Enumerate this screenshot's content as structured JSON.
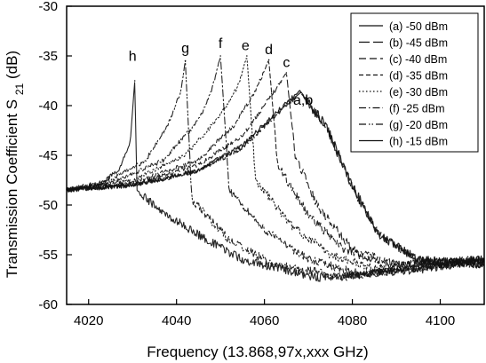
{
  "chart_data": {
    "type": "line",
    "xlabel": "Frequency (13.868,97x,xxx GHz)",
    "ylabel": "Transmission Coefficient S21 (dB)",
    "ylabel_main": "Transmission Coefficient S",
    "ylabel_sub": "21",
    "ylabel_tail": " (dB)",
    "xlim": [
      4015,
      4110
    ],
    "ylim": [
      -60,
      -30
    ],
    "xticks": [
      4020,
      4040,
      4060,
      4080,
      4100
    ],
    "yticks": [
      -30,
      -35,
      -40,
      -45,
      -50,
      -55,
      -60
    ],
    "xtick_labels": [
      "4020",
      "4040",
      "4060",
      "4080",
      "4100"
    ],
    "ytick_labels": [
      "-30",
      "-35",
      "-40",
      "-45",
      "-50",
      "-55",
      "-60"
    ],
    "grid": false,
    "legend_position": "top-right",
    "series": [
      {
        "name": "(a) -50 dBm",
        "dash": "solid",
        "peak_x": 4068.0,
        "peak_y": -38.5,
        "points": [
          [
            4015,
            -48.5
          ],
          [
            4030,
            -48.0
          ],
          [
            4045,
            -46.5
          ],
          [
            4055,
            -44.0
          ],
          [
            4062,
            -41.0
          ],
          [
            4068,
            -38.5
          ],
          [
            4074,
            -42.0
          ],
          [
            4080,
            -48.0
          ],
          [
            4086,
            -53.0
          ],
          [
            4095,
            -55.5
          ],
          [
            4110,
            -56.0
          ]
        ]
      },
      {
        "name": "(b) -45 dBm",
        "dash": "long-dash",
        "peak_x": 4068.2,
        "peak_y": -38.7,
        "points": [
          [
            4015,
            -48.5
          ],
          [
            4030,
            -48.0
          ],
          [
            4045,
            -46.6
          ],
          [
            4055,
            -44.2
          ],
          [
            4062,
            -41.2
          ],
          [
            4068.2,
            -38.7
          ],
          [
            4074,
            -42.2
          ],
          [
            4080,
            -48.2
          ],
          [
            4086,
            -53.0
          ],
          [
            4095,
            -55.5
          ],
          [
            4110,
            -56.0
          ]
        ]
      },
      {
        "name": "(c) -40 dBm",
        "dash": "dash",
        "peak_x": 4065.0,
        "peak_y": -36.7,
        "points": [
          [
            4015,
            -48.5
          ],
          [
            4030,
            -48.0
          ],
          [
            4045,
            -46.0
          ],
          [
            4055,
            -43.0
          ],
          [
            4060,
            -40.0
          ],
          [
            4065,
            -36.7
          ],
          [
            4067,
            -45.0
          ],
          [
            4072,
            -50.0
          ],
          [
            4080,
            -54.5
          ],
          [
            4090,
            -56.0
          ],
          [
            4110,
            -55.5
          ]
        ]
      },
      {
        "name": "(d) -35 dBm",
        "dash": "short-dash",
        "peak_x": 4061.0,
        "peak_y": -35.4,
        "points": [
          [
            4015,
            -48.5
          ],
          [
            4030,
            -47.8
          ],
          [
            4045,
            -45.5
          ],
          [
            4053,
            -42.0
          ],
          [
            4058,
            -38.5
          ],
          [
            4061,
            -35.4
          ],
          [
            4063,
            -46.0
          ],
          [
            4070,
            -51.0
          ],
          [
            4078,
            -54.5
          ],
          [
            4088,
            -56.0
          ],
          [
            4110,
            -55.5
          ]
        ]
      },
      {
        "name": "(e) -30 dBm",
        "dash": "dot",
        "peak_x": 4056.0,
        "peak_y": -35.0,
        "points": [
          [
            4015,
            -48.5
          ],
          [
            4030,
            -47.5
          ],
          [
            4042,
            -45.0
          ],
          [
            4050,
            -41.0
          ],
          [
            4054,
            -38.0
          ],
          [
            4056,
            -35.0
          ],
          [
            4058,
            -47.5
          ],
          [
            4066,
            -52.0
          ],
          [
            4075,
            -55.0
          ],
          [
            4086,
            -56.5
          ],
          [
            4110,
            -55.5
          ]
        ]
      },
      {
        "name": "(f) -25 dBm",
        "dash": "dash-dot",
        "peak_x": 4050.0,
        "peak_y": -35.0,
        "points": [
          [
            4015,
            -48.5
          ],
          [
            4025,
            -47.8
          ],
          [
            4037,
            -45.5
          ],
          [
            4045,
            -41.5
          ],
          [
            4048,
            -38.5
          ],
          [
            4050,
            -35.0
          ],
          [
            4052,
            -48.5
          ],
          [
            4060,
            -52.5
          ],
          [
            4070,
            -55.5
          ],
          [
            4082,
            -57.0
          ],
          [
            4110,
            -55.5
          ]
        ]
      },
      {
        "name": "(g) -20 dBm",
        "dash": "dash-dot-dot",
        "peak_x": 4042.0,
        "peak_y": -35.5,
        "points": [
          [
            4015,
            -48.5
          ],
          [
            4025,
            -47.5
          ],
          [
            4033,
            -45.5
          ],
          [
            4038,
            -42.0
          ],
          [
            4041,
            -38.5
          ],
          [
            4042,
            -35.5
          ],
          [
            4043.5,
            -49.5
          ],
          [
            4052,
            -53.5
          ],
          [
            4062,
            -56.0
          ],
          [
            4078,
            -57.2
          ],
          [
            4110,
            -55.5
          ]
        ]
      },
      {
        "name": "(h) -15 dBm",
        "dash": "solid",
        "peak_x": 4030.5,
        "peak_y": -37.5,
        "points": [
          [
            4015,
            -48.5
          ],
          [
            4022,
            -48.0
          ],
          [
            4027,
            -46.5
          ],
          [
            4029.5,
            -43.5
          ],
          [
            4030.5,
            -37.5
          ],
          [
            4031,
            -48.5
          ],
          [
            4036,
            -50.5
          ],
          [
            4045,
            -53.0
          ],
          [
            4055,
            -55.5
          ],
          [
            4072,
            -57.3
          ],
          [
            4095,
            -56.5
          ],
          [
            4110,
            -55.5
          ]
        ]
      }
    ],
    "annotations": [
      {
        "text": "a,b",
        "x": 4068.8,
        "y": -39.9
      },
      {
        "text": "c",
        "x": 4065.0,
        "y": -36.1
      },
      {
        "text": "d",
        "x": 4061.0,
        "y": -34.8
      },
      {
        "text": "e",
        "x": 4055.7,
        "y": -34.4
      },
      {
        "text": "f",
        "x": 4050.0,
        "y": -34.2
      },
      {
        "text": "g",
        "x": 4042.0,
        "y": -34.7
      },
      {
        "text": "h",
        "x": 4030.0,
        "y": -35.5
      }
    ]
  }
}
